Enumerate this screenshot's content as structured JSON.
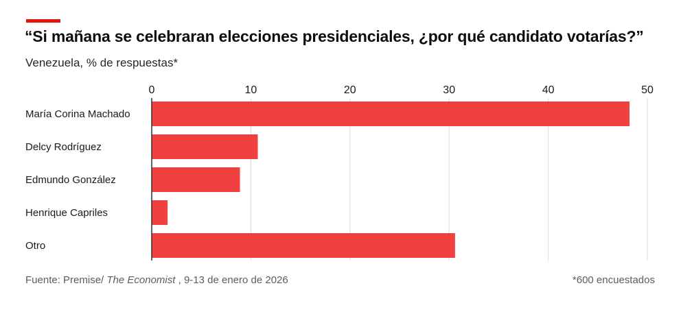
{
  "header": {
    "title": "“Si mañana se celebraran elecciones presidenciales, ¿por qué candidato votarías?”",
    "subtitle": "Venezuela, % de respuestas*"
  },
  "footer": {
    "source_prefix": "Fuente: Premise/ ",
    "source_publication": "The Economist",
    "source_suffix": " , 9-13 de enero de 2026",
    "note": "*600 encuestados"
  },
  "colors": {
    "bar": "#f04040",
    "accent": "#e3120b",
    "grid": "#d9d9d9",
    "axis": "#333333"
  },
  "chart_data": {
    "type": "bar",
    "orientation": "horizontal",
    "title": "“Si mañana se celebraran elecciones presidenciales, ¿por qué candidato votarías?”",
    "subtitle": "Venezuela, % de respuestas*",
    "categories": [
      "María Corina Machado",
      "Delcy Rodríguez",
      "Edmundo González",
      "Henrique Capriles",
      "Otro"
    ],
    "values": [
      48.2,
      10.7,
      8.9,
      1.6,
      30.6
    ],
    "xlim": [
      0,
      50
    ],
    "ticks": [
      0,
      10,
      20,
      30,
      40,
      50
    ],
    "tick_labels": [
      "0",
      "10",
      "20",
      "30",
      "40",
      "50"
    ],
    "xlabel": "",
    "ylabel": "",
    "grid": true,
    "axis_position": "top"
  }
}
